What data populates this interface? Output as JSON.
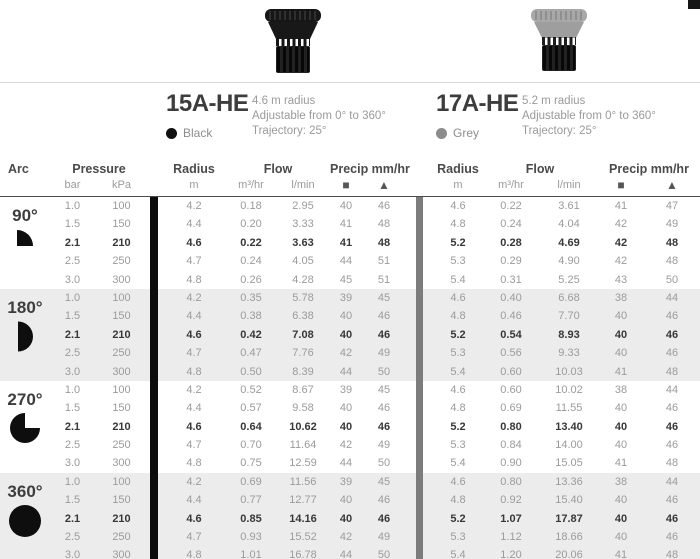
{
  "products": [
    {
      "model": "15A-HE",
      "color_label": "Black",
      "color_hex": "#111111",
      "desc_lines": [
        "4.6 m radius",
        "Adjustable from 0° to 360°",
        "Trajectory: 25°"
      ]
    },
    {
      "model": "17A-HE",
      "color_label": "Grey",
      "color_hex": "#8c8c8c",
      "desc_lines": [
        "5.2 m radius",
        "Adjustable from 0° to 360°",
        "Trajectory: 25°"
      ]
    }
  ],
  "table": {
    "header": {
      "arc": "Arc",
      "pressure": "Pressure",
      "bar": "bar",
      "kpa": "kPa",
      "radius": "Radius",
      "radius_unit": "m",
      "flow": "Flow",
      "flow_unit_m3": "m³/hr",
      "flow_unit_l": "l/min",
      "precip": "Precip mm/hr",
      "square_symbol": "■",
      "triangle_symbol": "▲"
    },
    "groups": [
      {
        "arc": "90°",
        "icon": "arc-90",
        "rows": [
          {
            "cells": [
              "1.0",
              "100",
              "4.2",
              "0.18",
              "2.95",
              "40",
              "46",
              "4.6",
              "0.22",
              "3.61",
              "41",
              "47"
            ],
            "bold": false
          },
          {
            "cells": [
              "1.5",
              "150",
              "4.4",
              "0.20",
              "3.33",
              "41",
              "48",
              "4.8",
              "0.24",
              "4.04",
              "42",
              "49"
            ],
            "bold": false
          },
          {
            "cells": [
              "2.1",
              "210",
              "4.6",
              "0.22",
              "3.63",
              "41",
              "48",
              "5.2",
              "0.28",
              "4.69",
              "42",
              "48"
            ],
            "bold": true
          },
          {
            "cells": [
              "2.5",
              "250",
              "4.7",
              "0.24",
              "4.05",
              "44",
              "51",
              "5.3",
              "0.29",
              "4.90",
              "42",
              "48"
            ],
            "bold": false
          },
          {
            "cells": [
              "3.0",
              "300",
              "4.8",
              "0.26",
              "4.28",
              "45",
              "51",
              "5.4",
              "0.31",
              "5.25",
              "43",
              "50"
            ],
            "bold": false
          }
        ]
      },
      {
        "arc": "180°",
        "icon": "arc-180",
        "rows": [
          {
            "cells": [
              "1.0",
              "100",
              "4.2",
              "0.35",
              "5.78",
              "39",
              "45",
              "4.6",
              "0.40",
              "6.68",
              "38",
              "44"
            ],
            "bold": false
          },
          {
            "cells": [
              "1.5",
              "150",
              "4.4",
              "0.38",
              "6.38",
              "40",
              "46",
              "4.8",
              "0.46",
              "7.70",
              "40",
              "46"
            ],
            "bold": false
          },
          {
            "cells": [
              "2.1",
              "210",
              "4.6",
              "0.42",
              "7.08",
              "40",
              "46",
              "5.2",
              "0.54",
              "8.93",
              "40",
              "46"
            ],
            "bold": true
          },
          {
            "cells": [
              "2.5",
              "250",
              "4.7",
              "0.47",
              "7.76",
              "42",
              "49",
              "5.3",
              "0.56",
              "9.33",
              "40",
              "46"
            ],
            "bold": false
          },
          {
            "cells": [
              "3.0",
              "300",
              "4.8",
              "0.50",
              "8.39",
              "44",
              "50",
              "5.4",
              "0.60",
              "10.03",
              "41",
              "48"
            ],
            "bold": false
          }
        ]
      },
      {
        "arc": "270°",
        "icon": "arc-270",
        "rows": [
          {
            "cells": [
              "1.0",
              "100",
              "4.2",
              "0.52",
              "8.67",
              "39",
              "45",
              "4.6",
              "0.60",
              "10.02",
              "38",
              "44"
            ],
            "bold": false
          },
          {
            "cells": [
              "1.5",
              "150",
              "4.4",
              "0.57",
              "9.58",
              "40",
              "46",
              "4.8",
              "0.69",
              "11.55",
              "40",
              "46"
            ],
            "bold": false
          },
          {
            "cells": [
              "2.1",
              "210",
              "4.6",
              "0.64",
              "10.62",
              "40",
              "46",
              "5.2",
              "0.80",
              "13.40",
              "40",
              "46"
            ],
            "bold": true
          },
          {
            "cells": [
              "2.5",
              "250",
              "4.7",
              "0.70",
              "11.64",
              "42",
              "49",
              "5.3",
              "0.84",
              "14.00",
              "40",
              "46"
            ],
            "bold": false
          },
          {
            "cells": [
              "3.0",
              "300",
              "4.8",
              "0.75",
              "12.59",
              "44",
              "50",
              "5.4",
              "0.90",
              "15.05",
              "41",
              "48"
            ],
            "bold": false
          }
        ]
      },
      {
        "arc": "360°",
        "icon": "arc-360",
        "rows": [
          {
            "cells": [
              "1.0",
              "100",
              "4.2",
              "0.69",
              "11.56",
              "39",
              "45",
              "4.6",
              "0.80",
              "13.36",
              "38",
              "44"
            ],
            "bold": false
          },
          {
            "cells": [
              "1.5",
              "150",
              "4.4",
              "0.77",
              "12.77",
              "40",
              "46",
              "4.8",
              "0.92",
              "15.40",
              "40",
              "46"
            ],
            "bold": false
          },
          {
            "cells": [
              "2.1",
              "210",
              "4.6",
              "0.85",
              "14.16",
              "40",
              "46",
              "5.2",
              "1.07",
              "17.87",
              "40",
              "46"
            ],
            "bold": true
          },
          {
            "cells": [
              "2.5",
              "250",
              "4.7",
              "0.93",
              "15.52",
              "42",
              "49",
              "5.3",
              "1.12",
              "18.66",
              "40",
              "46"
            ],
            "bold": false
          },
          {
            "cells": [
              "3.0",
              "300",
              "4.8",
              "1.01",
              "16.78",
              "44",
              "50",
              "5.4",
              "1.20",
              "20.06",
              "41",
              "48"
            ],
            "bold": false
          }
        ]
      }
    ]
  },
  "colors": {
    "band_alt": "#ececec",
    "divider_black": "#0c0c0c",
    "divider_grey": "#7c7c7c",
    "text_dark": "#3d3d3d",
    "text_muted": "#9a9a9a"
  }
}
